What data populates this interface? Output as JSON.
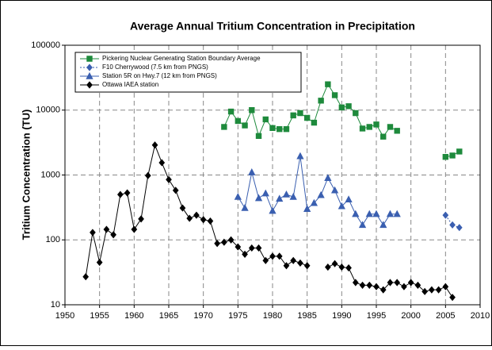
{
  "chart_data": {
    "type": "line",
    "title": "Average Annual Tritium Concentration in Precipitation",
    "ylabel": "Tritium Concentration (TU)",
    "x": [
      1953,
      1954,
      1955,
      1956,
      1957,
      1958,
      1959,
      1960,
      1961,
      1962,
      1963,
      1964,
      1965,
      1966,
      1967,
      1968,
      1969,
      1970,
      1971,
      1972,
      1973,
      1974,
      1975,
      1976,
      1977,
      1978,
      1979,
      1980,
      1981,
      1982,
      1983,
      1984,
      1985,
      1986,
      1987,
      1988,
      1989,
      1990,
      1991,
      1992,
      1993,
      1994,
      1995,
      1996,
      1997,
      1998,
      1999,
      2000,
      2001,
      2002,
      2003,
      2004,
      2005,
      2006,
      2007
    ],
    "series": [
      {
        "name": "Pickering Nuclear Generating Station Boundary Average",
        "color": "#1e8a3c",
        "marker": "square",
        "linestyle": "solid",
        "values": [
          null,
          null,
          null,
          null,
          null,
          null,
          null,
          null,
          null,
          null,
          null,
          null,
          null,
          null,
          null,
          null,
          null,
          null,
          null,
          null,
          5500,
          9500,
          6800,
          5800,
          10000,
          4000,
          7200,
          5300,
          5100,
          5100,
          8300,
          9000,
          7600,
          6400,
          14000,
          25000,
          17000,
          11000,
          11500,
          9000,
          5200,
          5500,
          6000,
          3900,
          5500,
          4800,
          null,
          null,
          null,
          null,
          null,
          null,
          1900,
          2000,
          2300
        ]
      },
      {
        "name": "F10 Cherrywood (7.5 km from PNGS)",
        "color": "#3a5fb0",
        "marker": "diamond",
        "linestyle": "dotted",
        "values": [
          null,
          null,
          null,
          null,
          null,
          null,
          null,
          null,
          null,
          null,
          null,
          null,
          null,
          null,
          null,
          null,
          null,
          null,
          null,
          null,
          null,
          null,
          null,
          null,
          null,
          null,
          null,
          null,
          null,
          null,
          null,
          null,
          null,
          null,
          null,
          null,
          null,
          null,
          null,
          null,
          null,
          null,
          null,
          null,
          null,
          null,
          null,
          null,
          null,
          null,
          null,
          null,
          240,
          170,
          155
        ]
      },
      {
        "name": "Station 5R on Hwy.7 (12 km from PNGS)",
        "color": "#3a5fb0",
        "marker": "triangle",
        "linestyle": "solid",
        "values": [
          null,
          null,
          null,
          null,
          null,
          null,
          null,
          null,
          null,
          null,
          null,
          null,
          null,
          null,
          null,
          null,
          null,
          null,
          null,
          null,
          null,
          null,
          460,
          310,
          1100,
          440,
          520,
          280,
          430,
          500,
          460,
          1950,
          300,
          370,
          490,
          900,
          580,
          330,
          420,
          250,
          170,
          250,
          250,
          170,
          250,
          250,
          null,
          null,
          null,
          null,
          null,
          null,
          null,
          null,
          null
        ]
      },
      {
        "name": "Ottawa IAEA station",
        "color": "#000000",
        "marker": "diamond",
        "linestyle": "solid",
        "values": [
          27,
          130,
          45,
          145,
          120,
          500,
          530,
          145,
          210,
          980,
          2900,
          1550,
          850,
          580,
          310,
          215,
          240,
          205,
          195,
          88,
          92,
          100,
          78,
          60,
          75,
          75,
          48,
          56,
          56,
          40,
          48,
          44,
          40,
          null,
          null,
          38,
          43,
          38,
          37,
          22,
          20,
          20,
          19,
          17,
          22,
          22,
          19,
          22,
          20,
          16,
          17,
          17,
          19,
          13,
          null
        ]
      }
    ],
    "xlim": [
      1950,
      2010
    ],
    "xticks": [
      1950,
      1955,
      1960,
      1965,
      1970,
      1975,
      1980,
      1985,
      1990,
      1995,
      2000,
      2005,
      2010
    ],
    "ylim": [
      10,
      100000
    ],
    "yticks": [
      10,
      100,
      1000,
      10000,
      100000
    ],
    "yscale": "log",
    "grid": true,
    "legend": "upper left"
  }
}
